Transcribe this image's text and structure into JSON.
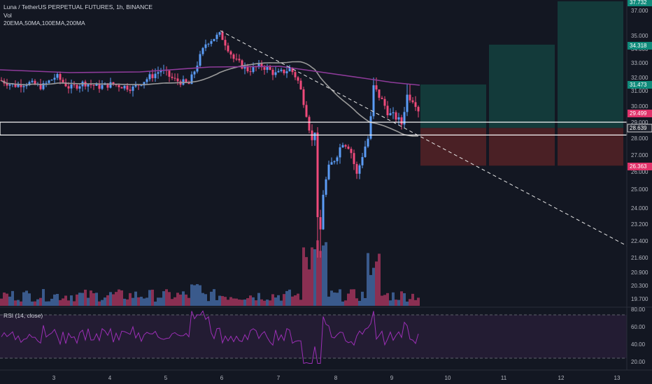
{
  "header": {
    "symbol_line": "Luna / TetherUS PERPETUAL FUTURES, 1h, BINANCE",
    "volume_label": "Vol",
    "ema_label": "20EMA,50MA,100EMA,200MA",
    "rsi_label": "RSI (14, close)"
  },
  "colors": {
    "background": "#131722",
    "up": "#5b9cf6",
    "down": "#ef4a7a",
    "vol_up": "#3a5a8c",
    "vol_down": "#8a2f52",
    "ma_gray": "#9a9a9a",
    "ma_purple": "#8e3b9a",
    "profit_zone": "#133a3a",
    "loss_zone": "#4a2025",
    "rsi_line": "#9c2fb6",
    "rsi_band": "#231c33",
    "badge_green": "#0f8a7a",
    "badge_red": "#e0326a"
  },
  "chart_data": {
    "type": "candlestick",
    "title": "Luna / TetherUS PERPETUAL FUTURES, 1h, BINANCE",
    "x_ticks": [
      "3",
      "4",
      "5",
      "6",
      "7",
      "8",
      "9",
      "10",
      "11",
      "12",
      "13"
    ],
    "y_ticks": [
      "37.000",
      "35.000",
      "34.000",
      "33.000",
      "32.000",
      "31.000",
      "30.000",
      "29.000",
      "28.000",
      "27.000",
      "26.000",
      "25.000",
      "24.000",
      "23.200",
      "22.400",
      "21.600",
      "20.900",
      "20.300",
      "19.700"
    ],
    "price_badges": [
      {
        "value": "37.732",
        "kind": "green"
      },
      {
        "value": "34.318",
        "kind": "green"
      },
      {
        "value": "31.473",
        "kind": "green"
      },
      {
        "value": "29.499",
        "kind": "red"
      },
      {
        "value": "28.639",
        "kind": "dark"
      },
      {
        "value": "26.363",
        "kind": "red"
      }
    ],
    "rsi_ticks": [
      "80.00",
      "60.00",
      "40.00",
      "20.00"
    ],
    "indicators": [
      "20EMA",
      "50MA",
      "100EMA",
      "200MA",
      "Vol",
      "RSI (14, close)"
    ],
    "support_box": {
      "top": 29.0,
      "bottom": 28.2
    },
    "trendline": "descending dashed",
    "position_boxes": [
      {
        "entry": 28.639,
        "target": 31.473,
        "stop": 26.363
      },
      {
        "entry": 28.639,
        "target": 34.318,
        "stop": 26.363
      },
      {
        "entry": 28.639,
        "target": 37.732,
        "stop": 26.363
      }
    ]
  }
}
